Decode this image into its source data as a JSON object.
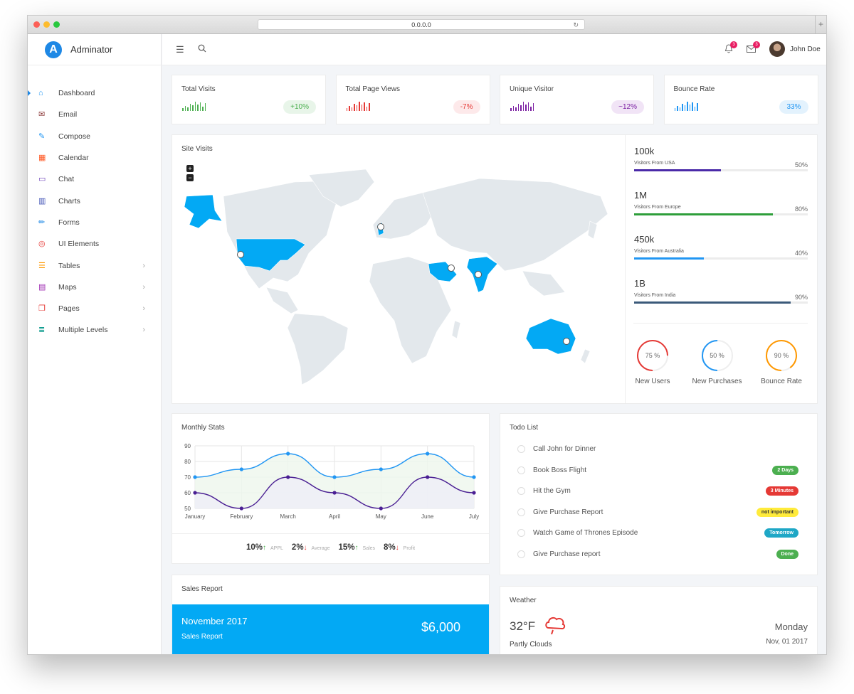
{
  "browser": {
    "url": "0.0.0.0"
  },
  "app": {
    "name": "Adminator"
  },
  "sidebar": {
    "items": [
      {
        "label": "Dashboard",
        "icon": "home-icon",
        "color": "#2196f3"
      },
      {
        "label": "Email",
        "icon": "mail-icon",
        "color": "#8d3b3b"
      },
      {
        "label": "Compose",
        "icon": "compose-icon",
        "color": "#2196f3"
      },
      {
        "label": "Calendar",
        "icon": "calendar-icon",
        "color": "#ff5722"
      },
      {
        "label": "Chat",
        "icon": "chat-icon",
        "color": "#673ab7"
      },
      {
        "label": "Charts",
        "icon": "charts-icon",
        "color": "#3f51b5"
      },
      {
        "label": "Forms",
        "icon": "pencil-icon",
        "color": "#1e88e5"
      },
      {
        "label": "UI Elements",
        "icon": "palette-icon",
        "color": "#e53935"
      },
      {
        "label": "Tables",
        "icon": "table-icon",
        "color": "#ff9800"
      },
      {
        "label": "Maps",
        "icon": "map-icon",
        "color": "#9c27b0"
      },
      {
        "label": "Pages",
        "icon": "pages-icon",
        "color": "#e53935"
      },
      {
        "label": "Multiple Levels",
        "icon": "layers-icon",
        "color": "#009688"
      }
    ]
  },
  "topbar": {
    "notifications": "3",
    "messages": "3",
    "user": "John Doe"
  },
  "stats": [
    {
      "title": "Total Visits",
      "badge": "+10%",
      "color": "#4caf50",
      "bg": "#e8f5e9"
    },
    {
      "title": "Total Page Views",
      "badge": "-7%",
      "color": "#e53935",
      "bg": "#fde9ea"
    },
    {
      "title": "Unique Visitor",
      "badge": "~12%",
      "color": "#7b1fa2",
      "bg": "#f1e4f6"
    },
    {
      "title": "Bounce Rate",
      "badge": "33%",
      "color": "#2196f3",
      "bg": "#e3f2fd"
    }
  ],
  "site_visits": {
    "title": "Site Visits",
    "zoom_in": "+",
    "zoom_out": "−",
    "regions": [
      {
        "value": "100k",
        "label": "Visitors From USA",
        "pct": "50%",
        "fraction": 0.5,
        "color": "#4a2aa8"
      },
      {
        "value": "1M",
        "label": "Visitors From Europe",
        "pct": "80%",
        "fraction": 0.8,
        "color": "#2e9e3a"
      },
      {
        "value": "450k",
        "label": "Visitors From Australia",
        "pct": "40%",
        "fraction": 0.4,
        "color": "#2196f3"
      },
      {
        "value": "1B",
        "label": "Visitors From India",
        "pct": "90%",
        "fraction": 0.9,
        "color": "#3b5a7a"
      }
    ],
    "donuts": [
      {
        "label": "New Users",
        "value": "75 %",
        "fraction": 0.75,
        "color": "#e53935"
      },
      {
        "label": "New Purchases",
        "value": "50 %",
        "fraction": 0.5,
        "color": "#2196f3"
      },
      {
        "label": "Bounce Rate",
        "value": "90 %",
        "fraction": 0.9,
        "color": "#ff9800"
      }
    ]
  },
  "monthly": {
    "title": "Monthly Stats",
    "stats": [
      {
        "value": "10%",
        "arrow": "↑",
        "arrow_color": "#4caf50",
        "label": "APPL"
      },
      {
        "value": "2%",
        "arrow": "↓",
        "arrow_color": "#e53935",
        "label": "Average"
      },
      {
        "value": "15%",
        "arrow": "↑",
        "arrow_color": "#4caf50",
        "label": "Sales"
      },
      {
        "value": "8%",
        "arrow": "↓",
        "arrow_color": "#e53935",
        "label": "Profit"
      }
    ]
  },
  "chart_data": {
    "type": "line",
    "categories": [
      "January",
      "February",
      "March",
      "April",
      "May",
      "June",
      "July"
    ],
    "series": [
      {
        "values": [
          70,
          75,
          85,
          70,
          75,
          85,
          70
        ],
        "color": "#2196f3",
        "fill": "#eef6ec"
      },
      {
        "values": [
          60,
          50,
          70,
          60,
          50,
          70,
          60
        ],
        "color": "#4a1f93",
        "fill": "#efeef7"
      }
    ],
    "yticks": [
      "90",
      "80",
      "70",
      "60",
      "50"
    ],
    "ylim": [
      50,
      90
    ],
    "grid": true
  },
  "todo": {
    "title": "Todo List",
    "items": [
      {
        "text": "Call John for Dinner",
        "tag": "",
        "tag_bg": "",
        "tag_color": ""
      },
      {
        "text": "Book Boss Flight",
        "tag": "2 Days",
        "tag_bg": "#4caf50",
        "tag_color": "#ffffff"
      },
      {
        "text": "Hit the Gym",
        "tag": "3 Minutes",
        "tag_bg": "#e53935",
        "tag_color": "#ffffff"
      },
      {
        "text": "Give Purchase Report",
        "tag": "not important",
        "tag_bg": "#ffeb3b",
        "tag_color": "#333333"
      },
      {
        "text": "Watch Game of Thrones Episode",
        "tag": "Tomorrow",
        "tag_bg": "#1ea7c6",
        "tag_color": "#ffffff"
      },
      {
        "text": "Give Purchase report",
        "tag": "Done",
        "tag_bg": "#4caf50",
        "tag_color": "#ffffff"
      }
    ]
  },
  "sales": {
    "title": "Sales Report",
    "month": "November 2017",
    "sub": "Sales Report",
    "amount": "$6,000"
  },
  "weather": {
    "title": "Weather",
    "temp": "32°F",
    "condition": "Partly Clouds",
    "day": "Monday",
    "date": "Nov, 01 2017"
  }
}
